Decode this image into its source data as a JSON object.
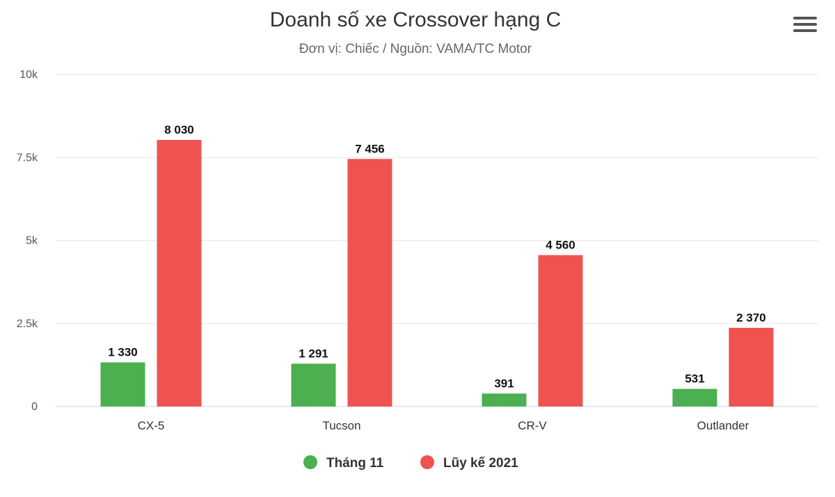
{
  "chart_data": {
    "type": "bar",
    "title": "Doanh số xe Crossover hạng C",
    "subtitle": "Đơn vị: Chiếc / Nguồn: VAMA/TC Motor",
    "categories": [
      "CX-5",
      "Tucson",
      "CR-V",
      "Outlander"
    ],
    "series": [
      {
        "name": "Tháng 11",
        "color": "#4caf50",
        "values": [
          1330,
          1291,
          391,
          531
        ],
        "labels": [
          "1 330",
          "1 291",
          "391",
          "531"
        ]
      },
      {
        "name": "Lũy kế 2021",
        "color": "#ef5350",
        "values": [
          8030,
          7456,
          4560,
          2370
        ],
        "labels": [
          "8 030",
          "7 456",
          "4 560",
          "2 370"
        ]
      }
    ],
    "y_ticks": [
      0,
      2500,
      5000,
      7500,
      10000
    ],
    "y_tick_labels": [
      "0",
      "2.5k",
      "5k",
      "7.5k",
      "10k"
    ],
    "ylim": [
      0,
      10000
    ],
    "grid": true,
    "legend_position": "bottom-center"
  },
  "toolbar": {
    "menu_icon": "hamburger-menu-icon"
  }
}
